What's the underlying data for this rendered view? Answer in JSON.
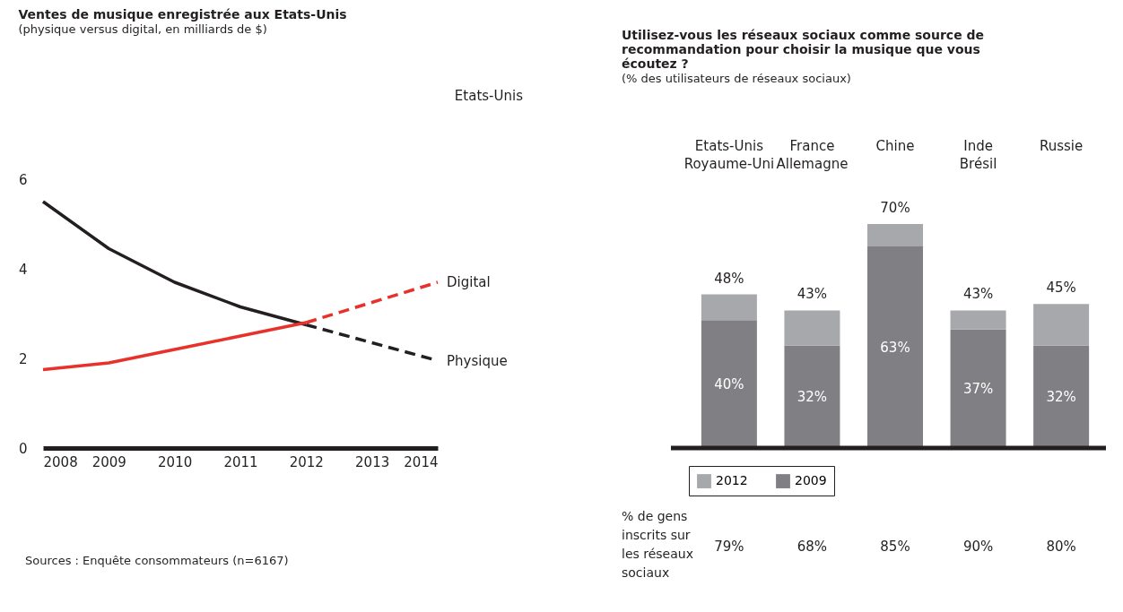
{
  "chart_data": [
    {
      "type": "line",
      "title": "Ventes de musique enregistrée aux Etats-Unis",
      "subtitle": "(physique versus digital, en milliards de $)",
      "xlim": [
        2008,
        2014
      ],
      "xticks": [
        2008,
        2009,
        2010,
        2011,
        2012,
        2013,
        2014
      ],
      "ylim": [
        0,
        6
      ],
      "yticks": [
        0,
        2,
        4,
        6
      ],
      "grid": false,
      "marker": "none",
      "series": [
        {
          "color": "#231f20",
          "line_style": "solid",
          "x": [
            2008,
            2009,
            2010,
            2011,
            2012
          ],
          "values": [
            5.5,
            4.45,
            3.7,
            3.15,
            2.75
          ]
        },
        {
          "name": "Physique",
          "color": "#231f20",
          "line_style": "dashed",
          "x": [
            2012,
            2013,
            2014
          ],
          "values": [
            2.75,
            2.35,
            1.95
          ]
        },
        {
          "color": "#e8312a",
          "line_style": "solid",
          "x": [
            2008,
            2009,
            2010,
            2011,
            2012
          ],
          "values": [
            1.75,
            1.9,
            2.2,
            2.5,
            2.8
          ]
        },
        {
          "name": "Digital",
          "color": "#e8312a",
          "line_style": "dashed",
          "x": [
            2012,
            2013,
            2014
          ],
          "values": [
            2.8,
            3.25,
            3.7
          ]
        }
      ],
      "annotations": [
        "Etats-Unis",
        "Sources : Enquête consommateurs (n=6167)"
      ]
    },
    {
      "type": "bar",
      "title": "Utilisez-vous les réseaux sociaux comme source de recommandation pour choisir la musique que vous écoutez ?",
      "subtitle": "(% des utilisateurs de réseaux sociaux)",
      "categories": [
        "Etats-Unis\nRoyaume-Uni",
        "France\nAllemagne",
        "Chine",
        "Inde\nBrésil",
        "Russie"
      ],
      "legend": "bottom",
      "stacked": true,
      "series": [
        {
          "name": "2009",
          "color": "#808084",
          "values": [
            40,
            32,
            63,
            37,
            32
          ],
          "value_labels": [
            "40%",
            "32%",
            "63%",
            "37%",
            "32%"
          ]
        },
        {
          "name": "2012",
          "color": "#a7a8ab",
          "values": [
            8,
            11,
            7,
            6,
            13
          ]
        }
      ],
      "totals": [
        "48%",
        "43%",
        "70%",
        "43%",
        "45%"
      ],
      "annotations": [
        "% de gens\ninscrits sur\nles réseaux\nsociaux",
        "79%",
        "68%",
        "85%",
        "90%",
        "80%"
      ]
    }
  ]
}
